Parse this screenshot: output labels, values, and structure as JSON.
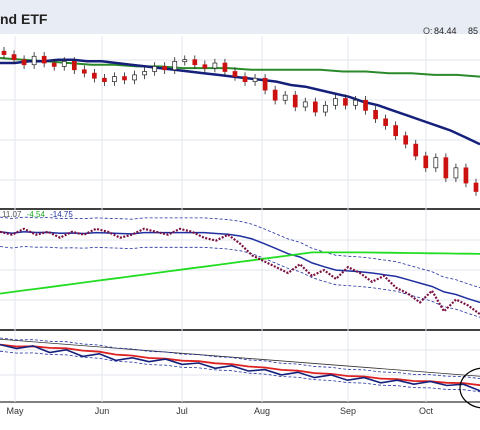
{
  "header": {
    "title_fragment": "nd ETF",
    "open_label": "O:",
    "open_value": "84.44",
    "high_fragment": "85"
  },
  "colors": {
    "header_bg": "#e8ecf4",
    "ma_short": "#14207a",
    "ma_long": "#2a8a2a",
    "candle_up": "#ffffff",
    "candle_down": "#cc1111",
    "dotted_line": "#7a1040",
    "band": "#2030a0",
    "green_line": "#22dd22",
    "red_line": "#dd2222",
    "gray_line": "#333333",
    "bottom_line": "#14207a"
  },
  "chart_data": [
    {
      "type": "candlestick",
      "panel": "price",
      "x_ticks": [
        "May",
        "Jun",
        "Jul",
        "Aug",
        "Sep",
        "Oct"
      ],
      "series": [
        {
          "name": "",
          "role": "close",
          "values": [
            86.9,
            86.6,
            86.3,
            86.8,
            86.4,
            86.2,
            86.5,
            86.0,
            85.8,
            85.5,
            85.3,
            85.6,
            85.4,
            85.7,
            85.9,
            86.2,
            86.0,
            86.5,
            86.6,
            86.3,
            86.1,
            86.4,
            85.9,
            85.6,
            85.3,
            85.5,
            84.8,
            84.2,
            84.5,
            83.8,
            84.1,
            83.5,
            83.9,
            84.3,
            83.9,
            84.2,
            83.6,
            83.1,
            82.7,
            82.1,
            81.6,
            80.9,
            80.2,
            80.8,
            79.6,
            80.2,
            79.3,
            78.8
          ]
        },
        {
          "name": "",
          "role": "moving-average",
          "values": [
            86.4,
            86.4,
            86.5,
            86.5,
            86.6,
            86.6,
            86.5,
            86.5,
            86.4,
            86.3,
            86.2,
            86.1,
            86.0,
            85.9,
            85.8,
            85.7,
            85.6,
            85.5,
            85.4,
            85.3,
            85.1,
            85.0,
            84.8,
            84.6,
            84.4,
            84.1,
            83.9,
            83.6,
            83.3,
            83.0,
            82.7,
            82.4,
            82.0,
            81.6
          ]
        },
        {
          "name": "",
          "role": "moving-average",
          "values": [
            86.7,
            86.6,
            86.5,
            86.4,
            86.3,
            86.3,
            86.2,
            86.2,
            86.1,
            86.1,
            86.1,
            86.0,
            86.0,
            86.0,
            86.0,
            85.9,
            85.9,
            85.8,
            85.8,
            85.7,
            85.7,
            85.6
          ]
        }
      ],
      "ylim": [
        78,
        88
      ]
    },
    {
      "type": "line",
      "panel": "middle",
      "legend_values": [
        "11.07",
        "-4.54",
        "-14.75"
      ],
      "series": [
        {
          "name": "",
          "values": [
            12,
            11,
            13,
            11,
            12,
            10,
            12,
            11,
            13,
            12,
            10,
            11,
            13,
            12,
            11,
            13,
            12,
            10,
            9,
            11,
            8,
            4,
            2,
            0,
            -2,
            1,
            -3,
            -1,
            -4,
            0,
            -2,
            -5,
            -3,
            -7,
            -9,
            -12,
            -8,
            -15,
            -11,
            -13,
            -16
          ]
        }
      ],
      "ylim": [
        -20,
        16
      ]
    },
    {
      "type": "line",
      "panel": "bottom",
      "series": [
        {
          "name": "",
          "values": [
            3.2,
            2.9,
            3.1,
            2.6,
            2.8,
            2.3,
            2.5,
            2.0,
            2.2,
            1.9,
            2.1,
            1.7,
            1.8,
            1.4,
            1.6,
            1.2,
            1.3,
            0.9,
            1.1,
            0.7,
            0.9,
            0.5,
            0.7,
            0.3,
            0.5,
            0.2,
            0.4,
            0.1,
            0.2,
            -0.3
          ]
        }
      ],
      "ylim": [
        -1,
        4
      ]
    }
  ]
}
